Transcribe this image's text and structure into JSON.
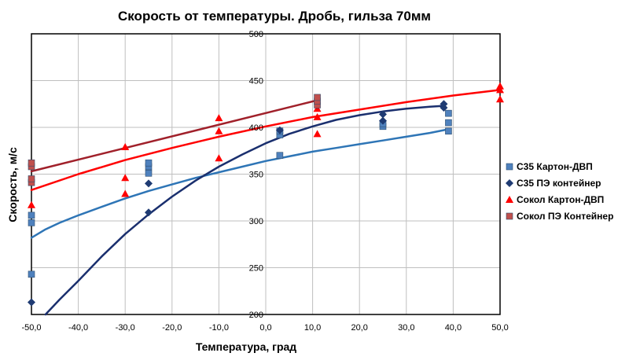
{
  "chart_data": {
    "type": "scatter",
    "title": "Скорость от температуры. Дробь, гильза 70мм",
    "xlabel": "Температура, град",
    "ylabel": "Скорость, м/с",
    "xlim": [
      -50,
      50
    ],
    "ylim": [
      200,
      500
    ],
    "x_ticks": [
      "-50,0",
      "-40,0",
      "-30,0",
      "-20,0",
      "-10,0",
      "0,0",
      "10,0",
      "20,0",
      "30,0",
      "40,0",
      "50,0"
    ],
    "y_ticks": [
      "200",
      "250",
      "300",
      "350",
      "400",
      "450",
      "500"
    ],
    "grid": true,
    "legend_position": "right",
    "series": [
      {
        "name": "С35 Картон-ДВП",
        "marker": "square",
        "color": "#4f81bd",
        "points": [
          [
            -50,
            243
          ],
          [
            -50,
            298
          ],
          [
            -50,
            306
          ],
          [
            -25,
            351
          ],
          [
            -25,
            358
          ],
          [
            -25,
            362
          ],
          [
            3,
            370
          ],
          [
            3,
            392
          ],
          [
            3,
            396
          ],
          [
            25,
            401
          ],
          [
            25,
            404
          ],
          [
            39,
            396
          ],
          [
            39,
            405
          ],
          [
            39,
            415
          ]
        ],
        "trend": {
          "x": [
            -50,
            -47,
            -44,
            -40,
            -35,
            -30,
            -25,
            -20,
            -15,
            -10,
            -5,
            0,
            5,
            10,
            15,
            20,
            25,
            30,
            35,
            39
          ],
          "y": [
            282,
            291,
            298,
            306,
            315,
            324,
            332,
            339,
            346,
            352,
            358,
            364,
            369,
            374,
            378,
            382,
            386,
            390,
            394,
            398
          ],
          "color": "#2e75b6"
        }
      },
      {
        "name": "С35 ПЭ контейнер",
        "marker": "diamond",
        "color": "#1f3b73",
        "points": [
          [
            -50,
            213
          ],
          [
            -25,
            309
          ],
          [
            -25,
            340
          ],
          [
            3,
            397
          ],
          [
            25,
            407
          ],
          [
            25,
            414
          ],
          [
            38,
            421
          ],
          [
            38,
            425
          ]
        ],
        "trend": {
          "x": [
            -47,
            -44,
            -40,
            -35,
            -30,
            -25,
            -20,
            -15,
            -10,
            -5,
            0,
            5,
            10,
            15,
            20,
            25,
            30,
            35,
            38
          ],
          "y": [
            200,
            216,
            236,
            262,
            286,
            307,
            326,
            343,
            358,
            371,
            383,
            393,
            401,
            408,
            413,
            417,
            420,
            422,
            423
          ],
          "color": "#1a2f6e"
        }
      },
      {
        "name": "Сокол Картон-ДВП",
        "marker": "triangle",
        "color": "#ff0000",
        "points": [
          [
            -50,
            317
          ],
          [
            -30,
            329
          ],
          [
            -30,
            346
          ],
          [
            -30,
            379
          ],
          [
            -10,
            367
          ],
          [
            -10,
            396
          ],
          [
            -10,
            410
          ],
          [
            11,
            393
          ],
          [
            11,
            411
          ],
          [
            11,
            420
          ],
          [
            50,
            430
          ],
          [
            50,
            440
          ],
          [
            50,
            444
          ]
        ],
        "trend": {
          "x": [
            -50,
            -40,
            -30,
            -20,
            -10,
            0,
            10,
            20,
            30,
            40,
            50
          ],
          "y": [
            333,
            350,
            365,
            378,
            390,
            401,
            411,
            419,
            427,
            434,
            440
          ],
          "color": "#ff0000"
        }
      },
      {
        "name": "Сокол ПЭ Контейнер",
        "marker": "square",
        "color": "#c0504d",
        "points": [
          [
            -50,
            341
          ],
          [
            -50,
            345
          ],
          [
            -50,
            358
          ],
          [
            -50,
            362
          ],
          [
            11,
            424
          ],
          [
            11,
            428
          ],
          [
            11,
            432
          ]
        ],
        "trend": {
          "x": [
            -50,
            11
          ],
          "y": [
            353,
            429
          ],
          "color": "#a0202a"
        }
      }
    ]
  }
}
